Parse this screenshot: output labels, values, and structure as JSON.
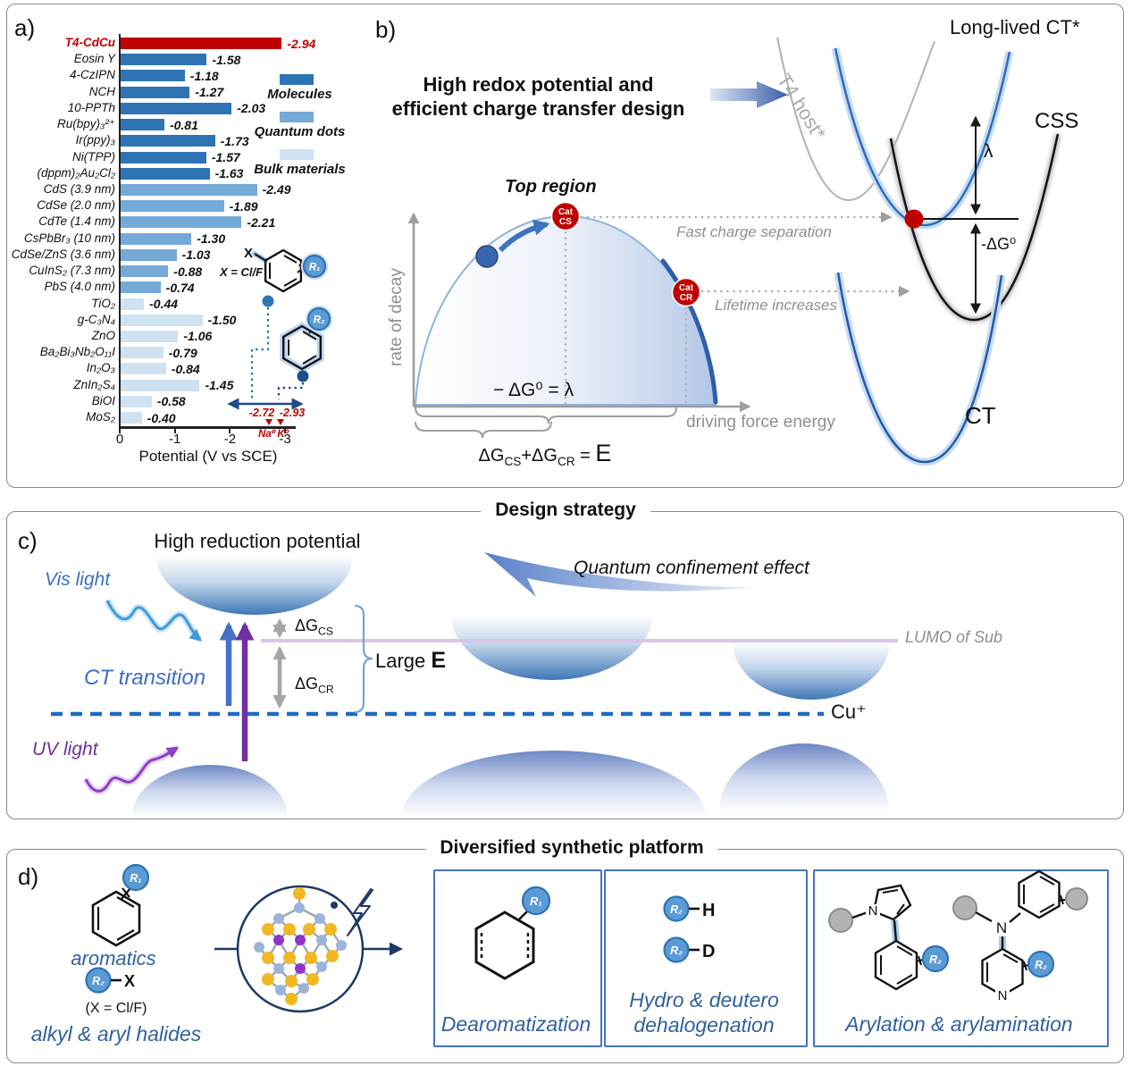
{
  "panel_a": {
    "label": "a)",
    "legend": [
      {
        "label": "Molecules",
        "color": "#2e74b5"
      },
      {
        "label": "Quantum dots",
        "color": "#74a9d8"
      },
      {
        "label": "Bulk materials",
        "color": "#cfe2f2"
      }
    ],
    "inset": {
      "x": "X",
      "x_eq": "X = Cl/F",
      "r1": "R₁",
      "r2": "R₂"
    }
  },
  "chart_data": {
    "type": "bar",
    "orientation": "horizontal",
    "xlabel": "Potential (V vs SCE)",
    "x_ticks": [
      0,
      -1,
      -2,
      -3
    ],
    "xlim": [
      0,
      -3.2
    ],
    "categories": [
      "T4-CdCu",
      "Eosin Y",
      "4-CzIPN",
      "NCH",
      "10-PPTh",
      "Ru(bpy)₃²⁺",
      "Ir(ppy)₃",
      "Ni(TPP)",
      "(dppm)₂Au₂Cl₂",
      "CdS (3.9 nm)",
      "CdSe (2.0 nm)",
      "CdTe (1.4 nm)",
      "CsPbBr₃ (10 nm)",
      "CdSe/ZnS (3.6 nm)",
      "CuInS₂ (7.3 nm)",
      "PbS (4.0 nm)",
      "TiO₂",
      "g-C₃N₄",
      "ZnO",
      "Ba₂Bi₃Nb₂O₁₁I",
      "In₂O₃",
      "ZnIn₂S₄",
      "BiOI",
      "MoS₂"
    ],
    "values": [
      -2.94,
      -1.58,
      -1.18,
      -1.27,
      -2.03,
      -0.81,
      -1.73,
      -1.57,
      -1.63,
      -2.49,
      -1.89,
      -2.21,
      -1.3,
      -1.03,
      -0.88,
      -0.74,
      -0.44,
      -1.5,
      -1.06,
      -0.79,
      -0.84,
      -1.45,
      -0.58,
      -0.4
    ],
    "groups": [
      "highlight",
      "molecules",
      "molecules",
      "molecules",
      "molecules",
      "molecules",
      "molecules",
      "molecules",
      "molecules",
      "quantum_dots",
      "quantum_dots",
      "quantum_dots",
      "quantum_dots",
      "quantum_dots",
      "quantum_dots",
      "quantum_dots",
      "bulk",
      "bulk",
      "bulk",
      "bulk",
      "bulk",
      "bulk",
      "bulk",
      "bulk"
    ],
    "group_colors": {
      "highlight": "#c00000",
      "molecules": "#2e74b5",
      "quantum_dots": "#74a9d8",
      "bulk": "#cfe2f2"
    },
    "annotations": [
      {
        "label": "Na⁰",
        "value": "-2.72"
      },
      {
        "label": "K⁰",
        "value": "-2.93"
      }
    ]
  },
  "panel_b": {
    "label": "b)",
    "title_line1": "High redox potential and",
    "title_line2": "efficient charge transfer design",
    "y_axis_label": "rate of decay",
    "x_axis_label": "driving force energy",
    "top_region": "Top region",
    "cat_cs": {
      "line1": "Cat",
      "line2": "CS"
    },
    "cat_cr": {
      "line1": "Cat",
      "line2": "CR"
    },
    "fast_charge": "Fast charge separation",
    "lifetime": "Lifetime increases",
    "marcus_eq": "− ΔG⁰ = λ",
    "energy_eq": {
      "dg1": "ΔG",
      "sub1": "CS",
      "plus": "+",
      "dg2": "ΔG",
      "sub2": "CR",
      "equals": "= ",
      "e": "E"
    },
    "t4_host": "T4 host*",
    "long_lived_ct": "Long-lived CT*",
    "css": "CSS",
    "lambda": "λ",
    "minus_dg0": "-ΔG⁰",
    "ct": "CT"
  },
  "panel_c": {
    "label": "c)",
    "section_title": "Design strategy",
    "high_reduction": "High reduction potential",
    "vis_light": "Vis light",
    "ct_transition": "CT transition",
    "uv_light": "UV light",
    "dg_cs": {
      "main": "ΔG",
      "sub": "CS"
    },
    "dg_cr": {
      "main": "ΔG",
      "sub": "CR"
    },
    "large_e": {
      "prefix": "Large ",
      "e": "E"
    },
    "quantum_confinement": "Quantum confinement effect",
    "lumo": "LUMO of Sub",
    "cu": "Cu⁺"
  },
  "panel_d": {
    "label": "d)",
    "section_title": "Diversified synthetic platform",
    "r1": "R₁",
    "r2": "R₂",
    "n_label": "N",
    "aromatics": "aromatics",
    "x_label": "X",
    "x_eq": "(X = Cl/F)",
    "halides": "alkyl & aryl halides",
    "box1": {
      "label": "Dearomatization"
    },
    "box2": {
      "h": "H",
      "d": "D",
      "label_line1": "Hydro & deutero",
      "label_line2": "dehalogenation"
    },
    "box3": {
      "label": "Arylation & arylamination"
    }
  }
}
